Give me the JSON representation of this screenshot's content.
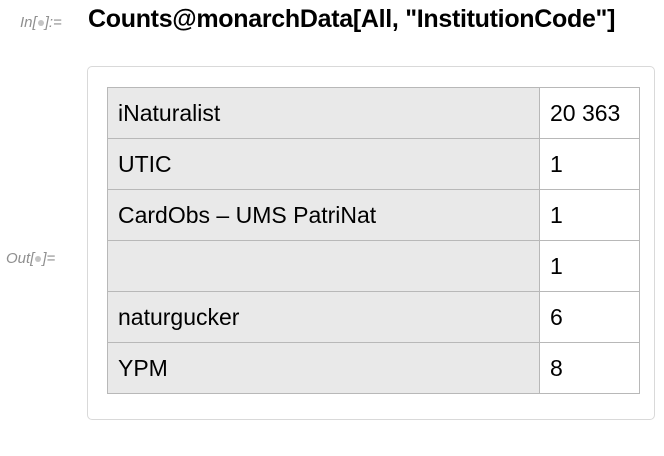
{
  "input_cell": {
    "label_prefix": "In[",
    "label_suffix": "]:=",
    "code": "Counts@monarchData[All, \"InstitutionCode\"]"
  },
  "output_cell": {
    "label_prefix": "Out[",
    "label_suffix": "]=",
    "rows": [
      {
        "key": "iNaturalist",
        "value": "20 363"
      },
      {
        "key": "UTIC",
        "value": "1"
      },
      {
        "key": "CardObs – UMS PatriNat",
        "value": "1"
      },
      {
        "key": "",
        "value": "1"
      },
      {
        "key": "naturgucker",
        "value": "6"
      },
      {
        "key": "YPM",
        "value": "8"
      }
    ]
  }
}
